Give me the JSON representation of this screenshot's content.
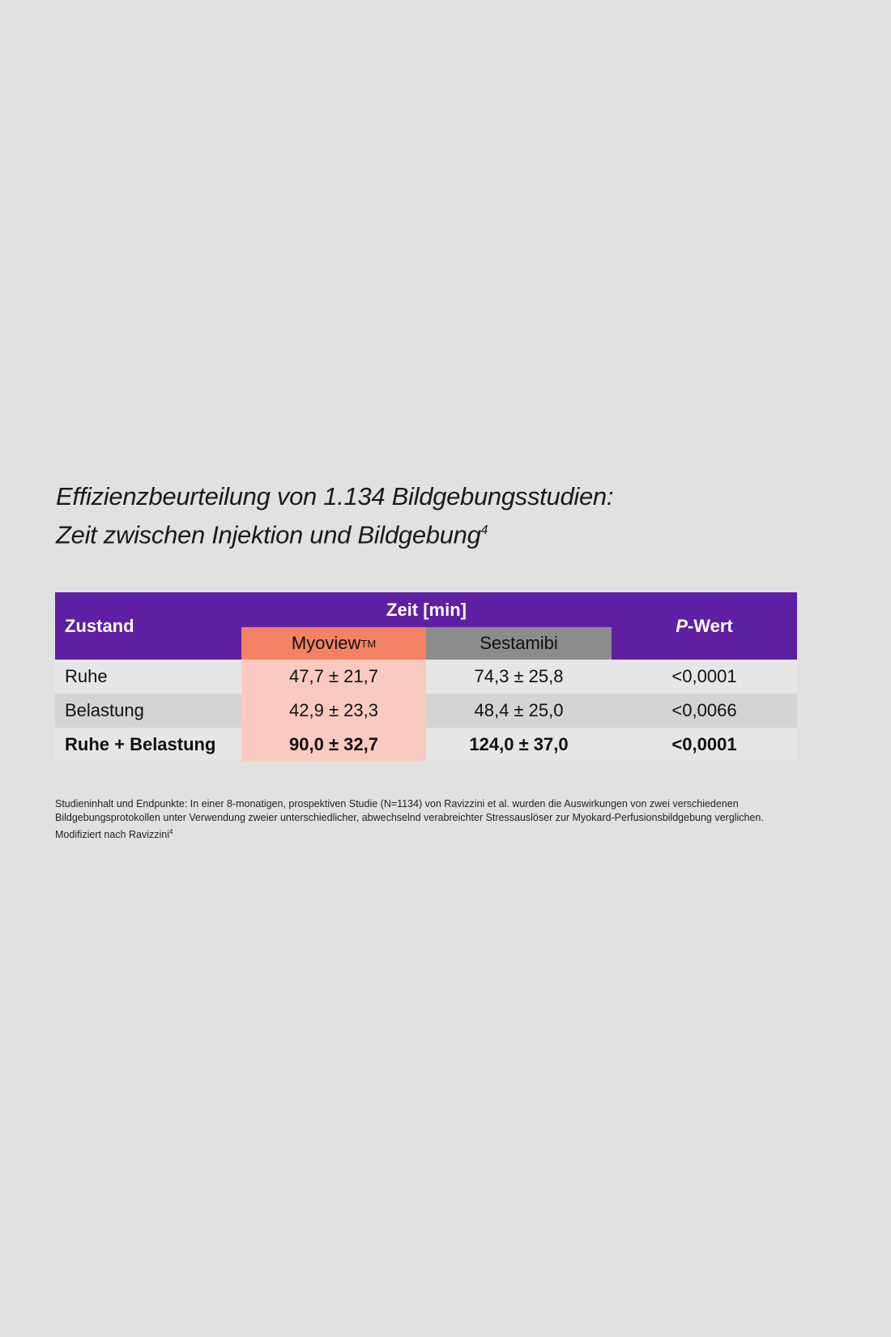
{
  "title": {
    "line1": "Effizienzbeurteilung von 1.134 Bildgebungsstudien:",
    "line2": "Zeit zwischen Injektion und Bildgebung",
    "sup": "4"
  },
  "table": {
    "header": {
      "zustand": "Zustand",
      "zeit": "Zeit [min]",
      "myoview": "Myoview",
      "myoview_tm": "TM",
      "sestamibi": "Sestamibi",
      "p_italic": "P",
      "p_rest": "-Wert"
    },
    "rows": [
      {
        "zustand": "Ruhe",
        "myoview": "47,7 ± 21,7",
        "sestamibi": "74,3 ± 25,8",
        "p": "<0,0001"
      },
      {
        "zustand": "Belastung",
        "myoview": "42,9 ± 23,3",
        "sestamibi": "48,4 ± 25,0",
        "p": "<0,0066"
      },
      {
        "zustand": "Ruhe + Belastung",
        "myoview": "90,0 ± 32,7",
        "sestamibi": "124,0 ± 37,0",
        "p": "<0,0001"
      }
    ]
  },
  "footnote": {
    "text": "Studieninhalt und Endpunkte: In einer 8-monatigen, prospektiven Studie (N=1134) von Ravizzini et al. wurden die Auswirkungen von zwei verschiedenen Bildgebungsprotokollen unter Verwendung zweier unterschiedlicher, abwechselnd verabreichter Stressauslöser zur Myokard-Perfusionsbildgebung verglichen.",
    "source": "Modifiziert nach Ravizzini",
    "source_sup": "4"
  },
  "colors": {
    "header": "#5e1fa3",
    "myoview": "#f38264",
    "myoview_light": "#facac0",
    "sestamibi": "#8c8c8c"
  }
}
